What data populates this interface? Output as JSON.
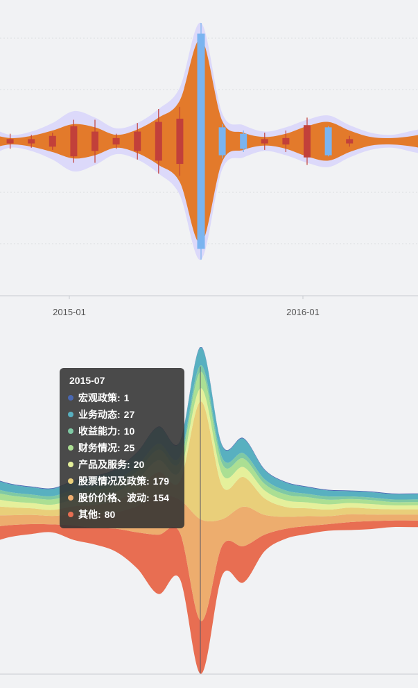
{
  "chart_data": [
    {
      "type": "area",
      "subtype": "mirrored-volatility-envelope",
      "x_tick_labels": [
        "2015-01",
        "2016-01"
      ],
      "y_grid": "dotted",
      "colors": {
        "envelope": "#dcd9fa",
        "band": "#e37a2b",
        "candle": "#c2403a",
        "candle_highlight": "#7ab4f0"
      },
      "x": [
        "2014-09",
        "2014-10",
        "2014-11",
        "2014-12",
        "2015-01",
        "2015-02",
        "2015-03",
        "2015-04",
        "2015-05",
        "2015-06",
        "2015-07",
        "2015-08",
        "2015-09",
        "2015-10",
        "2015-11",
        "2015-12",
        "2016-01",
        "2016-02",
        "2016-03",
        "2016-04",
        "2016-05",
        "2016-06"
      ],
      "series": [
        {
          "values_envelope": [
            14,
            6,
            9,
            17,
            28,
            22,
            12,
            17,
            30,
            50,
            110,
            26,
            15,
            9,
            13,
            20,
            24,
            15,
            8,
            6,
            10,
            14
          ]
        },
        {
          "values_band": [
            7,
            3,
            5,
            10,
            16,
            13,
            6,
            11,
            22,
            38,
            95,
            19,
            8,
            4,
            7,
            14,
            18,
            10,
            4,
            3,
            5,
            9
          ]
        },
        {
          "candle_half_height": [
            3,
            2,
            2,
            5,
            14,
            9,
            3,
            9,
            18,
            21,
            100,
            13,
            7,
            2,
            3,
            15,
            13,
            2,
            0,
            0,
            0,
            0
          ],
          "candle_tail": [
            8,
            7,
            6,
            8,
            20,
            20,
            7,
            17,
            30,
            32,
            110,
            16,
            10,
            8,
            10,
            22,
            14,
            5,
            0,
            0,
            0,
            0
          ]
        }
      ]
    },
    {
      "type": "area",
      "subtype": "streamgraph",
      "x": [
        "2014-09",
        "2014-10",
        "2014-11",
        "2014-12",
        "2015-01",
        "2015-02",
        "2015-03",
        "2015-04",
        "2015-05",
        "2015-06",
        "2015-07",
        "2015-08",
        "2015-09",
        "2015-10",
        "2015-11",
        "2015-12",
        "2016-01",
        "2016-02",
        "2016-03",
        "2016-04",
        "2016-05",
        "2016-06"
      ],
      "series": [
        {
          "name": "其他",
          "color": "#e86e52",
          "values": [
            24,
            18,
            15,
            12,
            22,
            25,
            35,
            55,
            90,
            70,
            80,
            45,
            55,
            25,
            15,
            12,
            10,
            12,
            12,
            10,
            10,
            10
          ]
        },
        {
          "name": "股价价格、波动",
          "color": "#edad6e",
          "values": [
            18,
            15,
            14,
            13,
            17,
            20,
            25,
            40,
            60,
            50,
            154,
            40,
            60,
            30,
            18,
            15,
            12,
            12,
            10,
            9,
            9,
            9
          ]
        },
        {
          "name": "股票情况及政策",
          "color": "#e9cf7a",
          "values": [
            15,
            12,
            10,
            9,
            12,
            15,
            18,
            25,
            35,
            28,
            179,
            50,
            45,
            25,
            15,
            12,
            10,
            10,
            9,
            8,
            8,
            8
          ]
        },
        {
          "name": "产品及服务",
          "color": "#e5f09b",
          "values": [
            12,
            9,
            8,
            8,
            10,
            12,
            13,
            15,
            18,
            15,
            20,
            18,
            15,
            12,
            10,
            9,
            8,
            7,
            7,
            6,
            6,
            6
          ]
        },
        {
          "name": "财务情况",
          "color": "#abdf93",
          "values": [
            10,
            9,
            8,
            8,
            9,
            10,
            11,
            13,
            16,
            14,
            25,
            16,
            13,
            10,
            9,
            8,
            7,
            6,
            6,
            5,
            5,
            5
          ]
        },
        {
          "name": "收益能力",
          "color": "#7fc9a4",
          "values": [
            6,
            5,
            5,
            5,
            6,
            6,
            7,
            8,
            9,
            8,
            10,
            9,
            8,
            7,
            6,
            5,
            5,
            4,
            4,
            4,
            4,
            4
          ]
        },
        {
          "name": "业务动态",
          "color": "#58b0c0",
          "values": [
            14,
            12,
            11,
            11,
            13,
            15,
            16,
            20,
            25,
            22,
            27,
            18,
            22,
            14,
            12,
            10,
            9,
            8,
            8,
            8,
            8,
            8
          ]
        },
        {
          "name": "宏观政策",
          "color": "#4a68b2",
          "values": [
            1,
            1,
            1,
            1,
            1,
            1,
            1,
            1,
            1,
            1,
            1,
            1,
            1,
            1,
            1,
            1,
            1,
            1,
            1,
            1,
            1,
            1
          ]
        }
      ],
      "tooltip": {
        "title": "2015-07",
        "rows": [
          {
            "name": "宏观政策",
            "value": "1",
            "color": "#4a68b2"
          },
          {
            "name": "业务动态",
            "value": "27",
            "color": "#58b0c0"
          },
          {
            "name": "收益能力",
            "value": "10",
            "color": "#7fc9a4"
          },
          {
            "name": "财务情况",
            "value": "25",
            "color": "#abdf93"
          },
          {
            "name": "产品及服务",
            "value": "20",
            "color": "#e5f09b"
          },
          {
            "name": "股票情况及政策",
            "value": "179",
            "color": "#e9cf7a"
          },
          {
            "name": "股价价格、波动",
            "value": "154",
            "color": "#edad6e"
          },
          {
            "name": "其他",
            "value": "80",
            "color": "#e86e52"
          }
        ]
      }
    }
  ]
}
